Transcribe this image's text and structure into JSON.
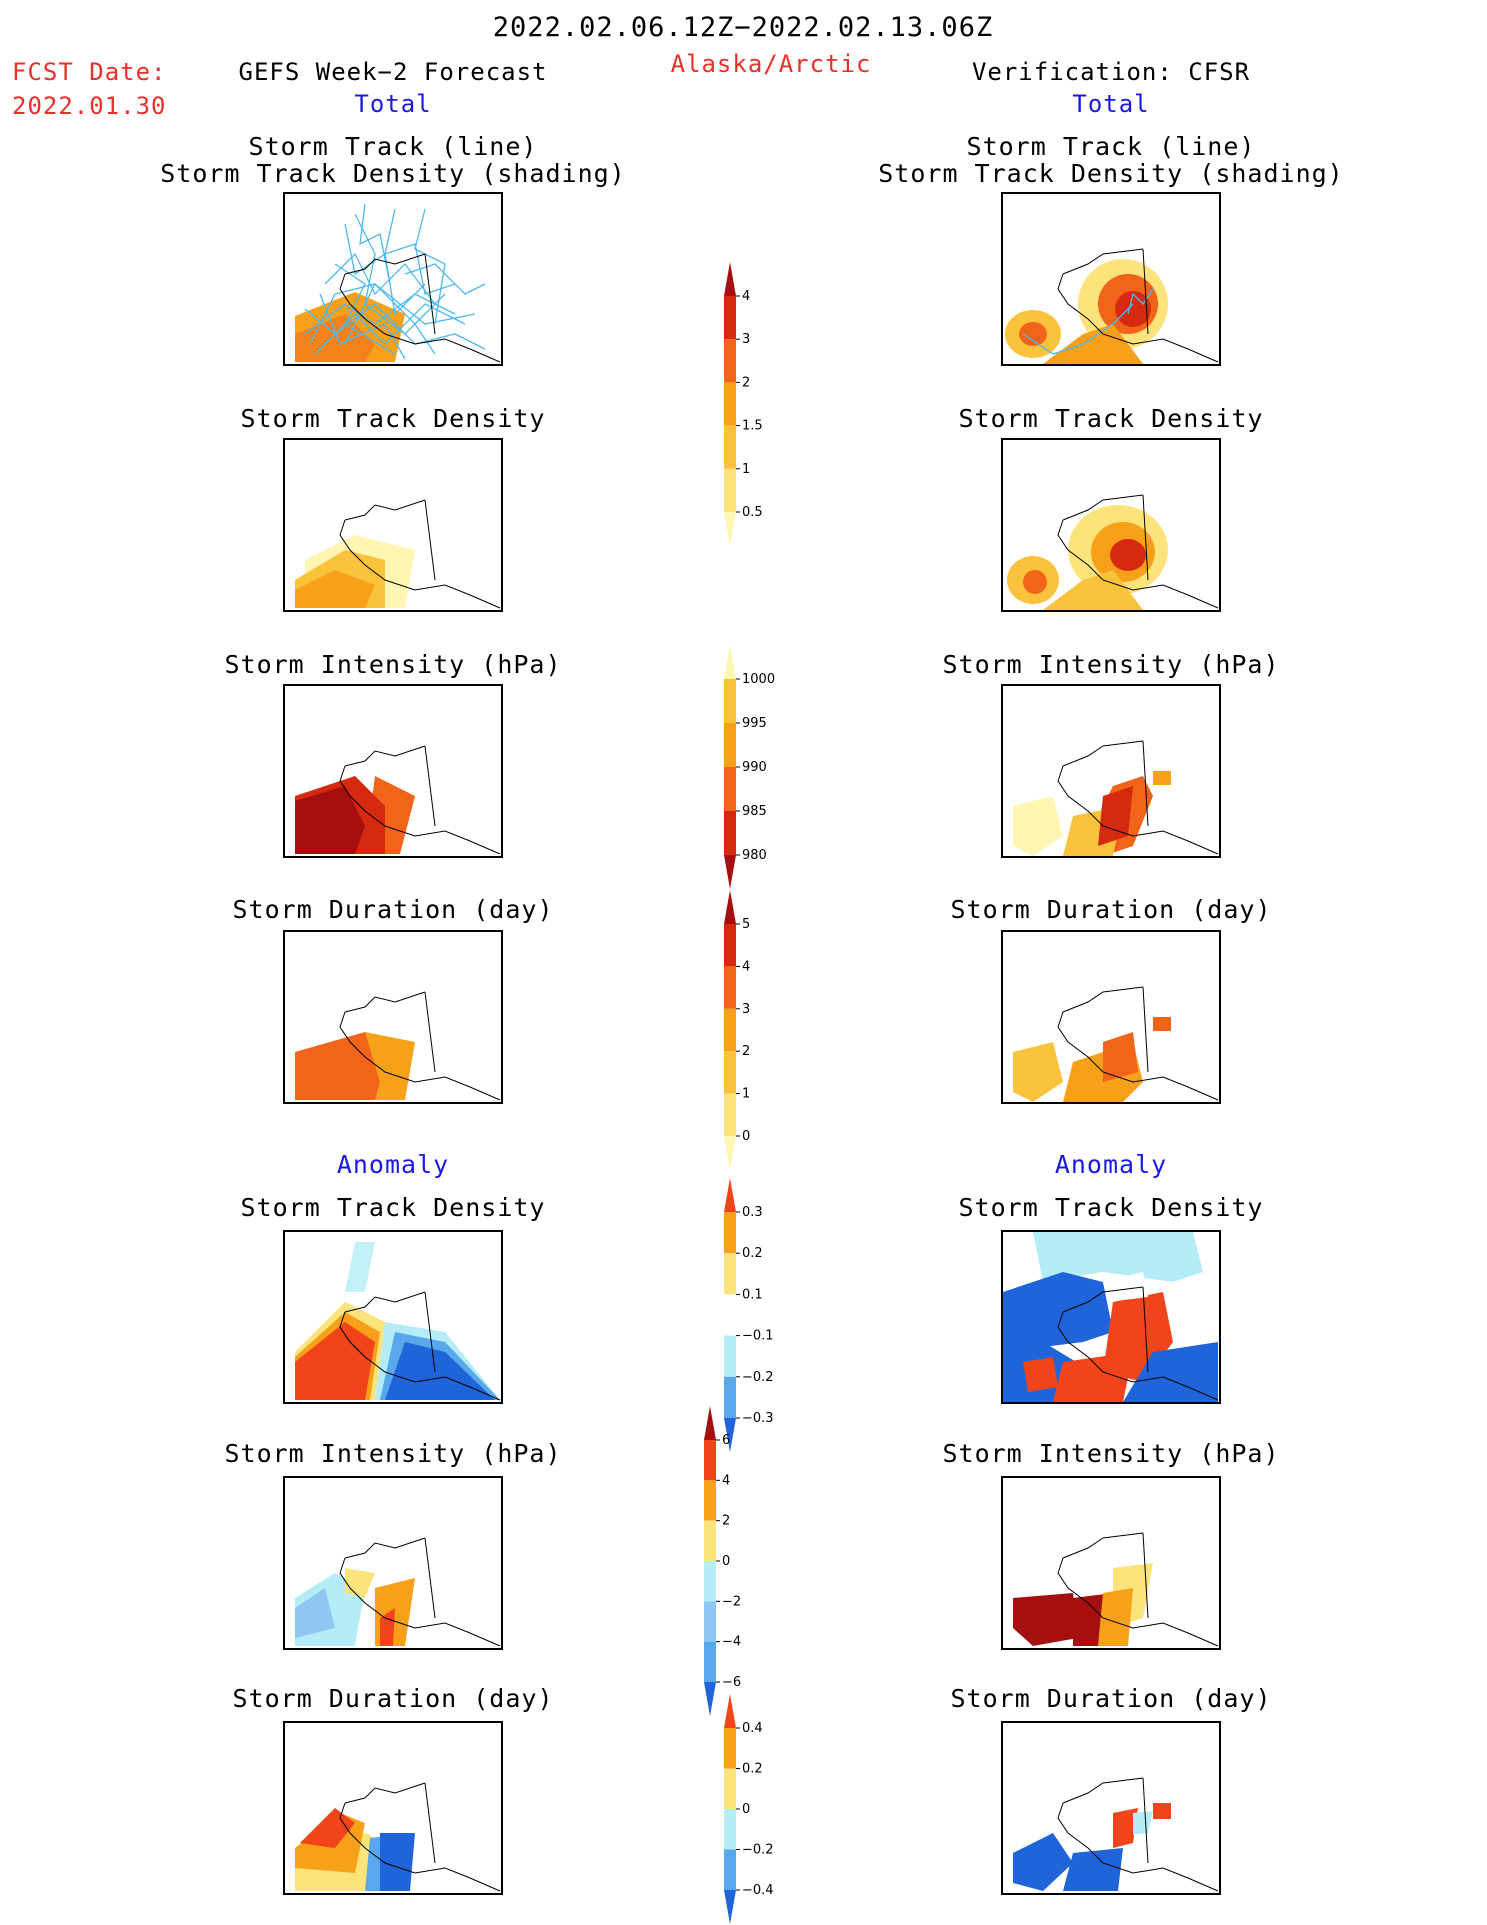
{
  "header": {
    "period": "2022.02.06.12Z−2022.02.13.06Z",
    "region": "Alaska/Arctic",
    "fcst_label": "FCST Date:",
    "fcst_date": "2022.01.30",
    "left_title": "GEFS Week−2 Forecast",
    "right_title": "Verification: CFSR",
    "total_label": "Total",
    "anomaly_label": "Anomaly"
  },
  "panel_titles": {
    "track_line": "Storm Track (line)",
    "track_shading": "Storm Track Density (shading)",
    "density": "Storm Track Density",
    "intensity": "Storm Intensity (hPa)",
    "duration": "Storm Duration (day)"
  },
  "colorbars": {
    "total_density": {
      "labels": [
        "4",
        "3",
        "2",
        "1.5",
        "1",
        "0.5"
      ],
      "colors": [
        "#a50f0f",
        "#d62a10",
        "#f2641a",
        "#f7a11a",
        "#fbc23c",
        "#fde37c",
        "#fff6b3"
      ]
    },
    "total_intensity": {
      "labels": [
        "1000",
        "995",
        "990",
        "985",
        "980"
      ],
      "colors": [
        "#fff6b3",
        "#fbc23c",
        "#f7a11a",
        "#f2641a",
        "#d62a10",
        "#a50f0f"
      ]
    },
    "total_duration": {
      "labels": [
        "5",
        "4",
        "3",
        "2",
        "1",
        "0"
      ],
      "colors": [
        "#a50f0f",
        "#d62a10",
        "#f2641a",
        "#f7a11a",
        "#fbc23c",
        "#fde37c",
        "#fff6b3"
      ]
    },
    "anom_density": {
      "labels": [
        "0.3",
        "0.2",
        "0.1",
        "−0.1",
        "−0.2",
        "−0.3"
      ],
      "colors": [
        "#f2441a",
        "#f7a11a",
        "#fde37c",
        "#ffffff",
        "#b4edf7",
        "#5aa8ec",
        "#1f64d8"
      ]
    },
    "anom_intensity": {
      "labels": [
        "6",
        "4",
        "2",
        "0",
        "−2",
        "−4",
        "−6"
      ],
      "colors": [
        "#a50f0f",
        "#f2441a",
        "#f7a11a",
        "#fde37c",
        "#b4edf7",
        "#8fc6f2",
        "#5aa8ec",
        "#1f64d8"
      ]
    },
    "anom_duration": {
      "labels": [
        "0.4",
        "0.2",
        "0",
        "−0.2",
        "−0.4"
      ],
      "colors": [
        "#f2441a",
        "#f7a11a",
        "#fde37c",
        "#b4edf7",
        "#5aa8ec",
        "#1f64d8"
      ]
    }
  },
  "colors": {
    "title_red": "#e8302a",
    "label_blue": "#1a1ae6",
    "track_line": "#4fb8ee"
  }
}
